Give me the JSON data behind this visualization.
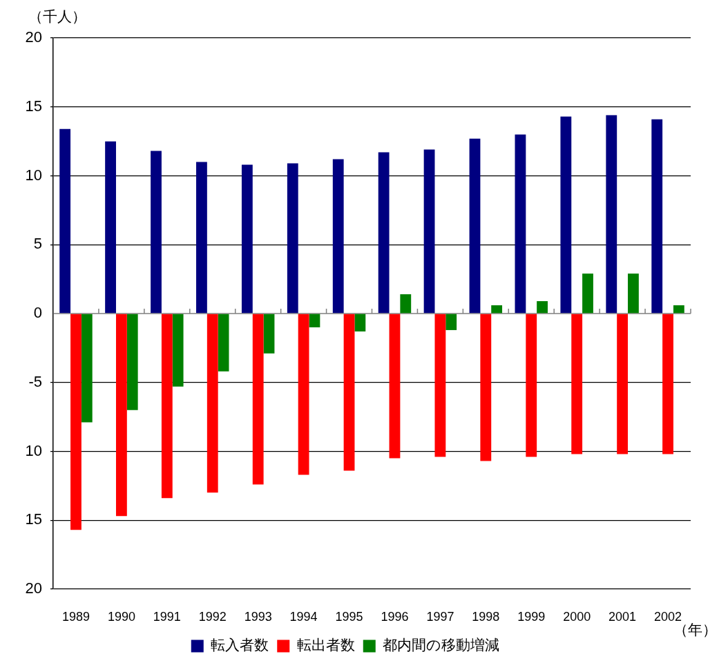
{
  "chart_data": {
    "type": "bar",
    "ylabel": "（千人）",
    "xlabel": "（年）",
    "categories": [
      "1989",
      "1990",
      "1991",
      "1992",
      "1993",
      "1994",
      "1995",
      "1996",
      "1997",
      "1998",
      "1999",
      "2000",
      "2001",
      "2002"
    ],
    "series": [
      {
        "name": "転入者数",
        "color": "#000080",
        "values": [
          13.4,
          12.5,
          11.8,
          11.0,
          10.8,
          10.9,
          11.2,
          11.7,
          11.9,
          12.7,
          13.0,
          14.3,
          14.4,
          14.1
        ]
      },
      {
        "name": "転出者数",
        "color": "#ff0000",
        "values": [
          -15.7,
          -14.7,
          -13.4,
          -13.0,
          -12.4,
          -11.7,
          -11.4,
          -10.5,
          -10.4,
          -10.7,
          -10.4,
          -10.2,
          -10.2,
          -10.2
        ]
      },
      {
        "name": "都内間の移動増減",
        "color": "#008000",
        "values": [
          -7.9,
          -7.0,
          -5.3,
          -4.2,
          -2.9,
          -1.0,
          -1.3,
          1.4,
          -1.2,
          0.6,
          0.9,
          2.9,
          2.9,
          0.6
        ]
      }
    ],
    "ylim": [
      -20,
      20
    ],
    "yticks": [
      {
        "value": -20,
        "label": "20"
      },
      {
        "value": -15,
        "label": "15"
      },
      {
        "value": -10,
        "label": "10"
      },
      -5,
      0,
      5,
      10,
      15,
      20
    ],
    "grid": "y",
    "legend": "bottom"
  }
}
